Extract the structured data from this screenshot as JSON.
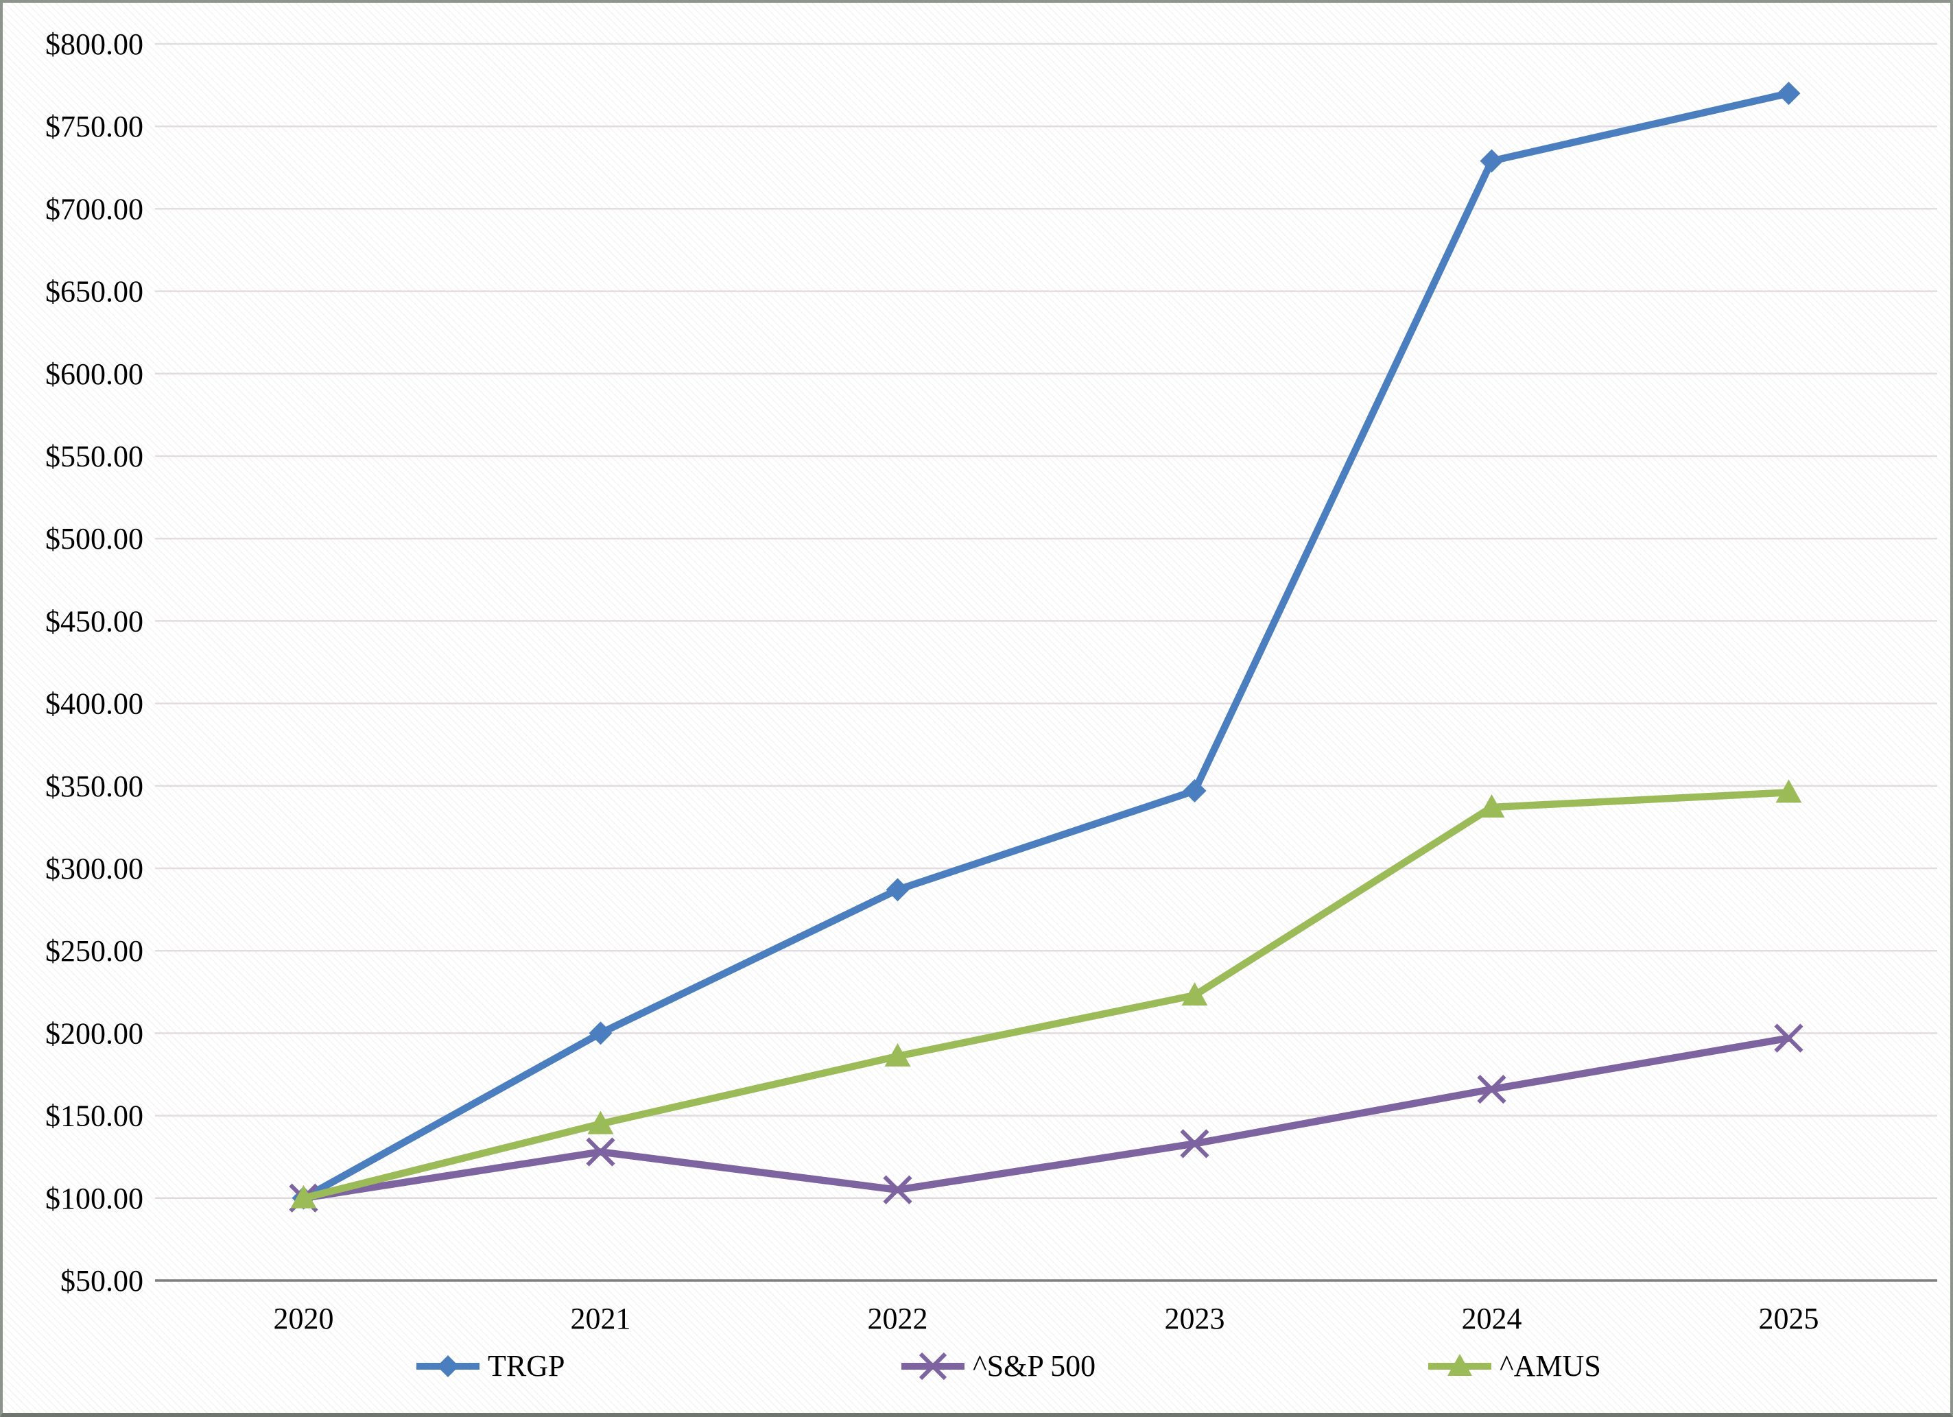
{
  "chart_data": {
    "type": "line",
    "title": "",
    "categories": [
      "2020",
      "2021",
      "2022",
      "2023",
      "2024",
      "2025"
    ],
    "series": [
      {
        "name": "TRGP",
        "marker": "diamond",
        "color": "#4A7EBE",
        "values": [
          100,
          200,
          287,
          347,
          729,
          770
        ]
      },
      {
        "name": "^S&P 500",
        "marker": "x",
        "color": "#7D639F",
        "values": [
          100,
          128,
          105,
          133,
          166,
          197
        ]
      },
      {
        "name": "^AMUS",
        "marker": "triangle",
        "color": "#9BBB59",
        "values": [
          100,
          145,
          186,
          223,
          337,
          346
        ]
      }
    ],
    "ylim": [
      50,
      800
    ],
    "ytick_step": 50,
    "y_ticks": [
      {
        "value": 800,
        "label": "$800.00"
      },
      {
        "value": 750,
        "label": "$750.00"
      },
      {
        "value": 700,
        "label": "$700.00"
      },
      {
        "value": 650,
        "label": "$650.00"
      },
      {
        "value": 600,
        "label": "$600.00"
      },
      {
        "value": 550,
        "label": "$550.00"
      },
      {
        "value": 500,
        "label": "$500.00"
      },
      {
        "value": 450,
        "label": "$450.00"
      },
      {
        "value": 400,
        "label": "$400.00"
      },
      {
        "value": 350,
        "label": "$350.00"
      },
      {
        "value": 300,
        "label": "$300.00"
      },
      {
        "value": 250,
        "label": "$250.00"
      },
      {
        "value": 200,
        "label": "$200.00"
      },
      {
        "value": 150,
        "label": "$150.00"
      },
      {
        "value": 100,
        "label": "$100.00"
      },
      {
        "value": 50,
        "label": "$50.00"
      }
    ],
    "grid": "horizontal",
    "legend_position": "bottom",
    "colors": {
      "gridline": "#E2DCE0",
      "axis_line": "#7F7F7F",
      "tick_text": "#000000"
    }
  },
  "legend": {
    "items": [
      {
        "label": "TRGP"
      },
      {
        "label": "^S&P 500"
      },
      {
        "label": "^AMUS"
      }
    ]
  }
}
